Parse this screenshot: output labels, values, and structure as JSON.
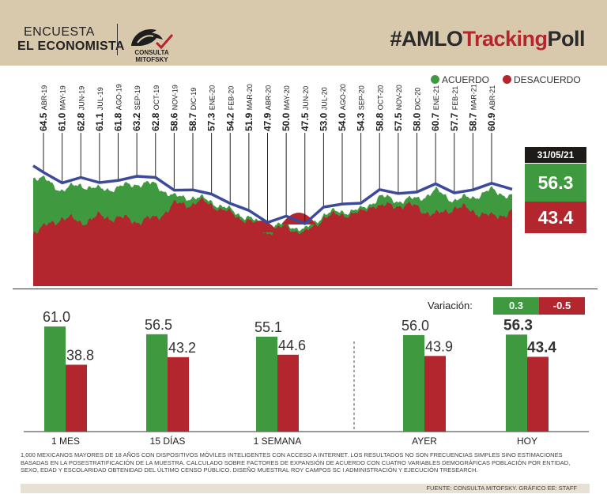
{
  "header": {
    "brand_line1": "ENCUESTA",
    "brand_line2": "EL ECONOMISTA",
    "logo_text": "CONSULTA MITOFSKY",
    "hashtag_prefix": "#AMLO",
    "hashtag_red": "Tracking",
    "hashtag_suffix": "Poll"
  },
  "colors": {
    "acuerdo": "#3f9a3f",
    "desacuerdo": "#b3262e",
    "line": "#3b4a9a",
    "header_bg": "#d8c9ad"
  },
  "legend": {
    "acuerdo": "ACUERDO",
    "desacuerdo": "DESACUERDO"
  },
  "latest": {
    "date": "31/05/21",
    "acuerdo": "56.3",
    "desacuerdo": "43.4"
  },
  "variation": {
    "label": "Variación:",
    "acuerdo": "0.3",
    "desacuerdo": "-0.5"
  },
  "chart_data": [
    {
      "type": "line",
      "x": [
        "ABR-19",
        "MAY-19",
        "JUN-19",
        "JUL-19",
        "AGO-19",
        "SEP-19",
        "OCT-19",
        "NOV-19",
        "DIC-19",
        "ENE-20",
        "FEB-20",
        "MAR-20",
        "ABR-20",
        "MAY-20",
        "JUN-20",
        "JUL-20",
        "AGO-20",
        "SEP-20",
        "OCT-20",
        "NOV-20",
        "DIC-20",
        "ENE-21",
        "FEB-21",
        "MAR-21",
        "ABR-21"
      ],
      "series": [
        {
          "values": [
            64.5,
            61.0,
            62.8,
            61.1,
            61.8,
            63.2,
            62.8,
            58.6,
            58.7,
            57.3,
            54.2,
            51.9,
            47.9,
            50.0,
            47.5,
            53.0,
            54.0,
            54.3,
            58.8,
            57.5,
            58.0,
            60.7,
            57.7,
            58.7,
            60.9
          ]
        }
      ]
    },
    {
      "type": "bar",
      "categories": [
        "1 MES",
        "15 DÍAS",
        "1 SEMANA",
        "AYER",
        "HOY"
      ],
      "series": [
        {
          "name": "ACUERDO",
          "values": [
            61.0,
            56.5,
            55.1,
            56.0,
            56.3
          ]
        },
        {
          "name": "DESACUERDO",
          "values": [
            38.8,
            43.2,
            44.6,
            43.9,
            43.4
          ]
        }
      ]
    }
  ],
  "footer": {
    "note": "1,000 mexicanos mayores de 18 años con dispositivos móviles inteligentes con acceso a internet. Los resultados no son frecuencias simples sino estimaciones basadas en la posestratificación de la muestra. Calculado sobre factores de expansión de acuerdo con cuatro variables demográficas población por entidad, sexo, edad y escolaridad obtenidad del último censo público. Diseño muestral Roy Campos SC I Administración y ejecución TResearch.",
    "source": "FUENTE: CONSULTA MITOFSKY. GRÁFICO EE: STAFF"
  }
}
